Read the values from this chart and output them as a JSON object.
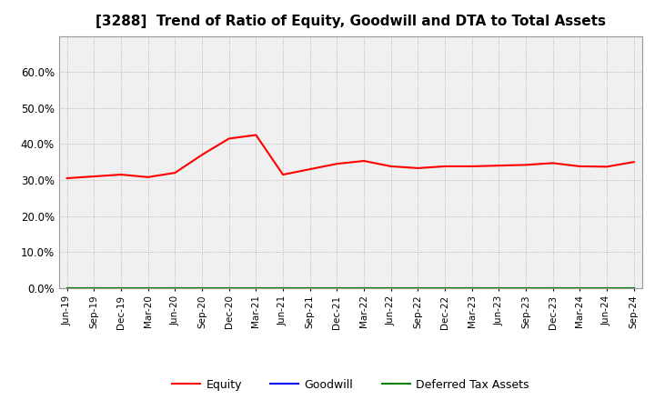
{
  "title": "[3288]  Trend of Ratio of Equity, Goodwill and DTA to Total Assets",
  "x_labels": [
    "Jun-19",
    "Sep-19",
    "Dec-19",
    "Mar-20",
    "Jun-20",
    "Sep-20",
    "Dec-20",
    "Mar-21",
    "Jun-21",
    "Sep-21",
    "Dec-21",
    "Mar-22",
    "Jun-22",
    "Sep-22",
    "Dec-22",
    "Mar-23",
    "Jun-23",
    "Sep-23",
    "Dec-23",
    "Mar-24",
    "Jun-24",
    "Sep-24"
  ],
  "equity": [
    0.305,
    0.31,
    0.315,
    0.308,
    0.32,
    0.37,
    0.415,
    0.425,
    0.315,
    0.33,
    0.345,
    0.353,
    0.338,
    0.333,
    0.338,
    0.338,
    0.34,
    0.342,
    0.347,
    0.338,
    0.337,
    0.35
  ],
  "goodwill": [
    0.0,
    0.0,
    0.0,
    0.0,
    0.0,
    0.0,
    0.0,
    0.0,
    0.0,
    0.0,
    0.0,
    0.0,
    0.0,
    0.0,
    0.0,
    0.0,
    0.0,
    0.0,
    0.0,
    0.0,
    0.0,
    0.0
  ],
  "dta": [
    0.0,
    0.0,
    0.0,
    0.0,
    0.0,
    0.0,
    0.0,
    0.0,
    0.0,
    0.0,
    0.0,
    0.0,
    0.0,
    0.0,
    0.0,
    0.0,
    0.0,
    0.0,
    0.0,
    0.0,
    0.0,
    0.0
  ],
  "equity_color": "#FF0000",
  "goodwill_color": "#0000FF",
  "dta_color": "#008000",
  "ylim": [
    0.0,
    0.7
  ],
  "yticks": [
    0.0,
    0.1,
    0.2,
    0.3,
    0.4,
    0.5,
    0.6
  ],
  "background_color": "#FFFFFF",
  "plot_bg_color": "#F0F0F0",
  "grid_color": "#AAAAAA",
  "title_fontsize": 11,
  "legend_labels": [
    "Equity",
    "Goodwill",
    "Deferred Tax Assets"
  ]
}
